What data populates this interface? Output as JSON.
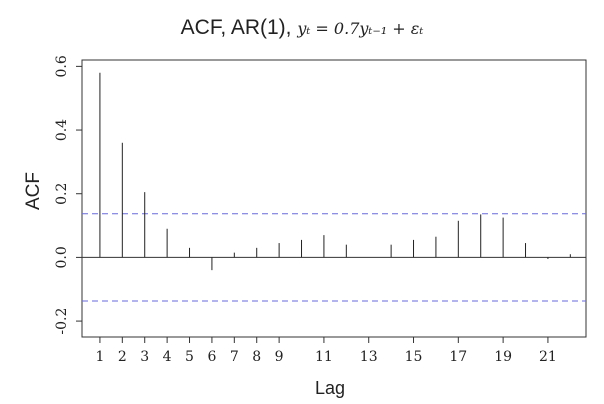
{
  "title": {
    "main": "ACF, AR(1),",
    "formula": "yₜ = 0.7yₜ₋₁ + εₜ"
  },
  "chart_data": {
    "type": "bar",
    "title": "ACF, AR(1), yₜ = 0.7yₜ₋₁ + εₜ",
    "xlabel": "Lag",
    "ylabel": "ACF",
    "x": [
      1,
      2,
      3,
      4,
      5,
      6,
      7,
      8,
      9,
      10,
      11,
      12,
      13,
      14,
      15,
      16,
      17,
      18,
      19,
      20,
      21,
      22
    ],
    "values": [
      0.58,
      0.36,
      0.205,
      0.09,
      0.03,
      -0.04,
      0.015,
      0.03,
      0.045,
      0.055,
      0.07,
      0.04,
      0.0,
      0.04,
      0.055,
      0.065,
      0.115,
      0.135,
      0.125,
      0.045,
      -0.005,
      0.01
    ],
    "confidence_band": [
      0.137,
      -0.137
    ],
    "xticks": [
      1,
      2,
      3,
      4,
      5,
      6,
      7,
      8,
      9,
      11,
      13,
      15,
      17,
      19,
      21
    ],
    "yticks": [
      -0.2,
      0.0,
      0.2,
      0.4,
      0.6
    ],
    "ytick_labels": [
      "-0.2",
      "0.0",
      "0.2",
      "0.4",
      "0.6"
    ],
    "xlim": [
      0.2,
      22.7
    ],
    "ylim": [
      -0.25,
      0.62
    ],
    "grid": false,
    "band_color": "#6a6ad8",
    "bar_color": "#222222"
  }
}
